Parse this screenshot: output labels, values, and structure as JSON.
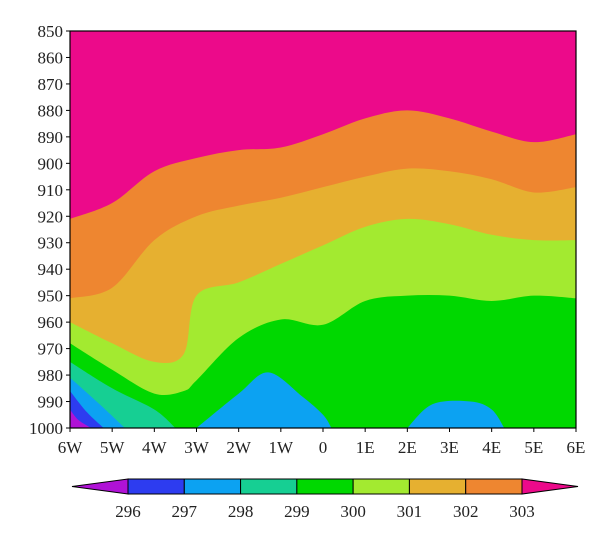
{
  "chart_data": {
    "type": "heatmap",
    "subtype": "filled-contour",
    "title": "",
    "xlabel": "",
    "ylabel": "",
    "x_tick_labels": [
      "6W",
      "5W",
      "4W",
      "3W",
      "2W",
      "1W",
      "0",
      "1E",
      "2E",
      "3E",
      "4E",
      "5E",
      "6E"
    ],
    "x_values": [
      -6,
      -5,
      -4,
      -3,
      -2,
      -1,
      0,
      1,
      2,
      3,
      4,
      5,
      6
    ],
    "y_tick_labels": [
      "850",
      "860",
      "870",
      "880",
      "890",
      "900",
      "910",
      "920",
      "930",
      "940",
      "950",
      "960",
      "970",
      "980",
      "990",
      "1000"
    ],
    "y_values": [
      850,
      860,
      870,
      880,
      890,
      900,
      910,
      920,
      930,
      940,
      950,
      960,
      970,
      980,
      990,
      1000
    ],
    "xlim": [
      -6,
      6
    ],
    "ylim": [
      1000,
      850
    ],
    "y_axis_inverted": true,
    "grid": false,
    "colorbar": {
      "placement": "bottom",
      "extend": "both",
      "levels": [
        "296",
        "297",
        "298",
        "299",
        "300",
        "301",
        "302",
        "303"
      ],
      "colors": [
        "#b012d6",
        "#2d3cf0",
        "#0ca2f2",
        "#16cf93",
        "#00d800",
        "#a3ea30",
        "#e6b030",
        "#ee8630",
        "#ec0a8a"
      ]
    },
    "contour_boundaries": [
      {
        "level": "303",
        "points": [
          [
            -6,
            921
          ],
          [
            -5,
            915
          ],
          [
            -4,
            903
          ],
          [
            -3,
            898
          ],
          [
            -2,
            895
          ],
          [
            -1,
            894
          ],
          [
            0,
            889
          ],
          [
            1,
            883
          ],
          [
            2,
            880
          ],
          [
            3,
            883
          ],
          [
            4,
            888
          ],
          [
            5,
            892
          ],
          [
            6,
            889
          ]
        ]
      },
      {
        "level": "302",
        "points": [
          [
            -6,
            951
          ],
          [
            -5,
            947
          ],
          [
            -4,
            929
          ],
          [
            -3,
            920
          ],
          [
            -2,
            916
          ],
          [
            -1,
            913
          ],
          [
            0,
            909
          ],
          [
            1,
            905
          ],
          [
            2,
            902
          ],
          [
            3,
            903
          ],
          [
            4,
            906
          ],
          [
            5,
            911
          ],
          [
            6,
            909
          ]
        ]
      },
      {
        "level": "301",
        "points": [
          [
            -6,
            960
          ],
          [
            -5,
            968
          ],
          [
            -4,
            975
          ],
          [
            -3.3,
            972
          ],
          [
            -3,
            950
          ],
          [
            -2,
            945
          ],
          [
            -1,
            938
          ],
          [
            0,
            931
          ],
          [
            1,
            924
          ],
          [
            2,
            921
          ],
          [
            3,
            923
          ],
          [
            4,
            927
          ],
          [
            5,
            929
          ],
          [
            6,
            929
          ]
        ]
      },
      {
        "level": "300",
        "points": [
          [
            -6,
            968
          ],
          [
            -5,
            978
          ],
          [
            -4,
            987
          ],
          [
            -3.3,
            986
          ],
          [
            -3,
            982
          ],
          [
            -2,
            966
          ],
          [
            -1,
            959
          ],
          [
            0,
            961
          ],
          [
            1,
            952
          ],
          [
            2,
            950
          ],
          [
            3,
            950
          ],
          [
            4,
            952
          ],
          [
            5,
            950
          ],
          [
            6,
            951
          ]
        ]
      },
      {
        "level": "299",
        "points": [
          [
            -6,
            975
          ],
          [
            -5,
            985
          ],
          [
            -4,
            993
          ],
          [
            -3.5,
            1000
          ]
        ],
        "pockets": [
          [
            [
              -3,
              1000
            ],
            [
              -2,
              987
            ],
            [
              -1.3,
              979
            ],
            [
              -0.5,
              988
            ],
            [
              0,
              995
            ],
            [
              0.2,
              1000
            ]
          ],
          [
            [
              2,
              1000
            ],
            [
              2.6,
              991
            ],
            [
              3.5,
              990
            ],
            [
              4,
              993
            ],
            [
              4.3,
              1000
            ]
          ]
        ]
      },
      {
        "level": "298",
        "points": [
          [
            -6,
            981
          ],
          [
            -5.3,
            991
          ],
          [
            -4.7,
            1000
          ]
        ]
      },
      {
        "level": "297",
        "points": [
          [
            -6,
            986
          ],
          [
            -5.6,
            994
          ],
          [
            -5.2,
            1000
          ]
        ]
      },
      {
        "level": "296",
        "points": [
          [
            -6,
            993
          ],
          [
            -5.8,
            997
          ],
          [
            -5.5,
            1000
          ]
        ]
      }
    ]
  }
}
